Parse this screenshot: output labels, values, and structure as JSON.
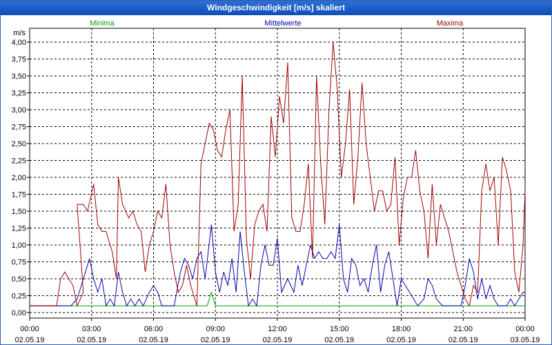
{
  "window": {
    "title": "Windgeschwindigkeit [m/s] skaliert"
  },
  "chart_data": {
    "type": "line",
    "ylabel": "m/s",
    "ylim": [
      0,
      4.0
    ],
    "yticks": [
      "0,00",
      "0,25",
      "0,50",
      "0,75",
      "1,00",
      "1,25",
      "1,50",
      "1,75",
      "2,00",
      "2,25",
      "2,50",
      "2,75",
      "3,00",
      "3,25",
      "3,50",
      "3,75",
      "4,00"
    ],
    "xticks": [
      {
        "time": "00:00",
        "date": "02.05.19"
      },
      {
        "time": "03:00",
        "date": "02.05.19"
      },
      {
        "time": "06:00",
        "date": "02.05.19"
      },
      {
        "time": "09:00",
        "date": "02.05.19"
      },
      {
        "time": "12:00",
        "date": "02.05.19"
      },
      {
        "time": "15:00",
        "date": "02.05.19"
      },
      {
        "time": "18:00",
        "date": "02.05.19"
      },
      {
        "time": "21:00",
        "date": "02.05.19"
      },
      {
        "time": "00:00",
        "date": "03.05.19"
      }
    ],
    "x_hours": [
      0,
      24
    ],
    "grid": true,
    "series": [
      {
        "name": "Minima",
        "color": "#00a000",
        "points": [
          [
            0,
            0.1
          ],
          [
            8.6,
            0.1
          ],
          [
            8.8,
            0.3
          ],
          [
            9.0,
            0.1
          ],
          [
            24,
            0.1
          ]
        ]
      },
      {
        "name": "Mittelwerte",
        "color": "#0000b0",
        "points": [
          [
            0,
            0.1
          ],
          [
            2.0,
            0.1
          ],
          [
            2.3,
            0.2
          ],
          [
            2.6,
            0.5
          ],
          [
            2.9,
            0.8
          ],
          [
            3.1,
            0.5
          ],
          [
            3.3,
            0.3
          ],
          [
            3.5,
            0.5
          ],
          [
            3.7,
            0.1
          ],
          [
            3.9,
            0.2
          ],
          [
            4.1,
            0.1
          ],
          [
            4.3,
            0.6
          ],
          [
            4.5,
            0.3
          ],
          [
            4.7,
            0.1
          ],
          [
            4.9,
            0.2
          ],
          [
            5.1,
            0.1
          ],
          [
            5.3,
            0.2
          ],
          [
            5.5,
            0.1
          ],
          [
            5.8,
            0.3
          ],
          [
            6.0,
            0.4
          ],
          [
            6.2,
            0.3
          ],
          [
            6.4,
            0.1
          ],
          [
            7.0,
            0.1
          ],
          [
            7.3,
            0.6
          ],
          [
            7.5,
            0.8
          ],
          [
            7.7,
            0.7
          ],
          [
            7.9,
            0.5
          ],
          [
            8.1,
            0.8
          ],
          [
            8.3,
            0.9
          ],
          [
            8.5,
            0.5
          ],
          [
            8.8,
            1.3
          ],
          [
            9.0,
            0.6
          ],
          [
            9.2,
            0.3
          ],
          [
            9.4,
            0.6
          ],
          [
            9.6,
            0.4
          ],
          [
            9.8,
            0.8
          ],
          [
            10.0,
            0.3
          ],
          [
            10.2,
            1.2
          ],
          [
            10.4,
            0.6
          ],
          [
            10.6,
            0.1
          ],
          [
            10.8,
            0.2
          ],
          [
            11.0,
            0.1
          ],
          [
            11.2,
            0.7
          ],
          [
            11.4,
            1.0
          ],
          [
            11.6,
            0.7
          ],
          [
            11.8,
            0.7
          ],
          [
            12.0,
            1.1
          ],
          [
            12.2,
            0.3
          ],
          [
            12.5,
            0.5
          ],
          [
            12.8,
            0.3
          ],
          [
            13.0,
            0.7
          ],
          [
            13.2,
            0.4
          ],
          [
            13.4,
            0.7
          ],
          [
            13.6,
            1.0
          ],
          [
            13.8,
            0.8
          ],
          [
            14.0,
            0.9
          ],
          [
            14.2,
            0.8
          ],
          [
            14.4,
            0.8
          ],
          [
            14.6,
            0.9
          ],
          [
            14.8,
            0.8
          ],
          [
            15.0,
            1.3
          ],
          [
            15.2,
            0.5
          ],
          [
            15.4,
            0.3
          ],
          [
            15.6,
            0.8
          ],
          [
            15.8,
            0.7
          ],
          [
            16.0,
            0.4
          ],
          [
            16.2,
            0.5
          ],
          [
            16.4,
            0.3
          ],
          [
            16.6,
            0.7
          ],
          [
            16.8,
            1.0
          ],
          [
            17.0,
            0.3
          ],
          [
            17.2,
            0.7
          ],
          [
            17.4,
            0.9
          ],
          [
            17.6,
            0.5
          ],
          [
            17.8,
            0.1
          ],
          [
            18.0,
            0.5
          ],
          [
            18.2,
            0.4
          ],
          [
            18.4,
            0.3
          ],
          [
            18.6,
            0.2
          ],
          [
            18.8,
            0.1
          ],
          [
            19.1,
            0.2
          ],
          [
            19.3,
            0.5
          ],
          [
            19.5,
            0.4
          ],
          [
            19.7,
            0.2
          ],
          [
            20.0,
            0.1
          ],
          [
            20.9,
            0.1
          ],
          [
            21.1,
            0.4
          ],
          [
            21.3,
            0.8
          ],
          [
            21.5,
            0.6
          ],
          [
            21.7,
            0.2
          ],
          [
            21.9,
            0.5
          ],
          [
            22.1,
            0.2
          ],
          [
            22.3,
            0.4
          ],
          [
            22.5,
            0.2
          ],
          [
            22.7,
            0.1
          ],
          [
            23.1,
            0.1
          ],
          [
            23.3,
            0.2
          ],
          [
            23.5,
            0.1
          ],
          [
            23.7,
            0.2
          ],
          [
            23.9,
            0.3
          ],
          [
            24.0,
            0.3
          ]
        ]
      },
      {
        "name": "Maxima",
        "color": "#a00000",
        "points": [
          [
            0,
            0.1
          ],
          [
            1.3,
            0.1
          ],
          [
            1.5,
            0.5
          ],
          [
            1.7,
            0.6
          ],
          [
            2.1,
            0.4
          ],
          [
            2.3,
            0.1
          ],
          [
            2.6,
            0.3
          ],
          [
            2.3,
            1.6
          ],
          [
            2.6,
            1.6
          ],
          [
            2.8,
            1.5
          ],
          [
            3.1,
            1.9
          ],
          [
            3.3,
            1.3
          ],
          [
            3.5,
            1.2
          ],
          [
            3.7,
            1.2
          ],
          [
            4.0,
            0.9
          ],
          [
            4.2,
            0.5
          ],
          [
            4.3,
            2.0
          ],
          [
            4.5,
            1.6
          ],
          [
            4.8,
            1.4
          ],
          [
            5.0,
            1.5
          ],
          [
            5.2,
            1.3
          ],
          [
            5.4,
            1.2
          ],
          [
            5.6,
            0.6
          ],
          [
            5.8,
            1.0
          ],
          [
            6.0,
            1.2
          ],
          [
            6.2,
            1.5
          ],
          [
            6.4,
            1.4
          ],
          [
            6.6,
            1.9
          ],
          [
            6.8,
            1.0
          ],
          [
            7.0,
            0.6
          ],
          [
            7.2,
            0.3
          ],
          [
            7.4,
            0.4
          ],
          [
            7.6,
            0.7
          ],
          [
            7.8,
            0.4
          ],
          [
            8.1,
            0.1
          ],
          [
            8.3,
            2.2
          ],
          [
            8.5,
            2.5
          ],
          [
            8.7,
            2.8
          ],
          [
            8.9,
            2.7
          ],
          [
            9.1,
            2.4
          ],
          [
            9.3,
            2.3
          ],
          [
            9.5,
            2.7
          ],
          [
            9.7,
            3.0
          ],
          [
            9.9,
            1.2
          ],
          [
            10.1,
            1.6
          ],
          [
            10.3,
            3.5
          ],
          [
            10.5,
            1.1
          ],
          [
            10.7,
            0.5
          ],
          [
            10.9,
            1.3
          ],
          [
            11.1,
            1.5
          ],
          [
            11.3,
            1.6
          ],
          [
            11.5,
            1.2
          ],
          [
            11.7,
            2.9
          ],
          [
            11.9,
            2.3
          ],
          [
            12.1,
            3.2
          ],
          [
            12.3,
            2.8
          ],
          [
            12.5,
            3.7
          ],
          [
            12.7,
            1.4
          ],
          [
            12.9,
            1.2
          ],
          [
            13.1,
            1.2
          ],
          [
            13.3,
            1.6
          ],
          [
            13.5,
            2.2
          ],
          [
            13.7,
            0.8
          ],
          [
            13.9,
            3.5
          ],
          [
            14.1,
            2.2
          ],
          [
            14.3,
            1.3
          ],
          [
            14.5,
            3.0
          ],
          [
            14.7,
            4.0
          ],
          [
            14.9,
            3.3
          ],
          [
            15.1,
            2.0
          ],
          [
            15.3,
            2.5
          ],
          [
            15.5,
            3.3
          ],
          [
            15.7,
            1.6
          ],
          [
            15.9,
            2.3
          ],
          [
            16.1,
            3.4
          ],
          [
            16.3,
            2.5
          ],
          [
            16.5,
            2.0
          ],
          [
            16.7,
            1.5
          ],
          [
            16.9,
            1.8
          ],
          [
            17.1,
            1.8
          ],
          [
            17.3,
            1.5
          ],
          [
            17.5,
            1.6
          ],
          [
            17.7,
            2.3
          ],
          [
            17.9,
            1.0
          ],
          [
            18.1,
            1.7
          ],
          [
            18.3,
            2.0
          ],
          [
            18.5,
            2.0
          ],
          [
            18.7,
            2.4
          ],
          [
            18.9,
            1.8
          ],
          [
            19.1,
            1.5
          ],
          [
            19.3,
            0.8
          ],
          [
            19.5,
            1.9
          ],
          [
            19.7,
            1.0
          ],
          [
            19.9,
            1.6
          ],
          [
            20.1,
            1.4
          ],
          [
            20.3,
            1.2
          ],
          [
            20.5,
            0.9
          ],
          [
            20.7,
            0.6
          ],
          [
            20.9,
            0.4
          ],
          [
            21.1,
            0.2
          ],
          [
            21.3,
            0.1
          ],
          [
            21.5,
            0.4
          ],
          [
            21.7,
            0.3
          ],
          [
            21.9,
            1.8
          ],
          [
            22.1,
            2.2
          ],
          [
            22.3,
            1.8
          ],
          [
            22.5,
            2.0
          ],
          [
            22.7,
            1.0
          ],
          [
            22.9,
            2.3
          ],
          [
            23.1,
            2.1
          ],
          [
            23.3,
            1.8
          ],
          [
            23.5,
            0.6
          ],
          [
            23.7,
            0.3
          ],
          [
            23.9,
            1.0
          ],
          [
            24.0,
            1.8
          ]
        ]
      }
    ]
  }
}
